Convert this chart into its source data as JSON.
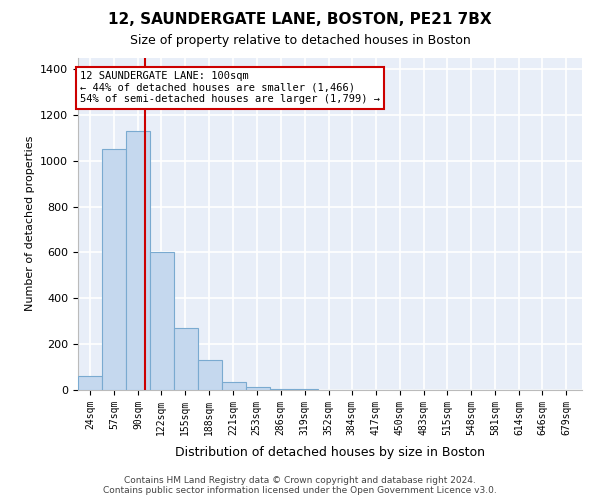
{
  "title1": "12, SAUNDERGATE LANE, BOSTON, PE21 7BX",
  "title2": "Size of property relative to detached houses in Boston",
  "xlabel": "Distribution of detached houses by size in Boston",
  "ylabel": "Number of detached properties",
  "bin_edges": [
    7.5,
    40.5,
    73.5,
    106.5,
    139.5,
    172.5,
    205.5,
    238.5,
    271.5,
    304.5,
    337.5,
    370.5,
    403.5,
    436.5,
    469.5,
    502.5,
    535.5,
    568.5,
    601.5,
    634.5,
    667.5,
    700.5
  ],
  "bar_values": [
    60,
    1050,
    1130,
    600,
    270,
    130,
    35,
    15,
    5,
    5,
    2,
    0,
    0,
    0,
    0,
    0,
    0,
    0,
    0,
    0,
    0
  ],
  "tick_labels": [
    "24sqm",
    "57sqm",
    "90sqm",
    "122sqm",
    "155sqm",
    "188sqm",
    "221sqm",
    "253sqm",
    "286sqm",
    "319sqm",
    "352sqm",
    "384sqm",
    "417sqm",
    "450sqm",
    "483sqm",
    "515sqm",
    "548sqm",
    "581sqm",
    "614sqm",
    "646sqm",
    "679sqm"
  ],
  "tick_positions": [
    24,
    57,
    90,
    122,
    155,
    188,
    221,
    253,
    286,
    319,
    352,
    384,
    417,
    450,
    483,
    515,
    548,
    581,
    614,
    646,
    679
  ],
  "bar_facecolor": "#c5d8ee",
  "bar_edgecolor": "#7aaad0",
  "vline_x": 100,
  "vline_color": "#cc0000",
  "annotation_text": "12 SAUNDERGATE LANE: 100sqm\n← 44% of detached houses are smaller (1,466)\n54% of semi-detached houses are larger (1,799) →",
  "annotation_box_facecolor": "#ffffff",
  "annotation_box_edgecolor": "#cc0000",
  "ylim": [
    0,
    1450
  ],
  "yticks": [
    0,
    200,
    400,
    600,
    800,
    1000,
    1200,
    1400
  ],
  "xlim": [
    7.5,
    700.5
  ],
  "bg_color": "#e8eef8",
  "grid_color": "#ffffff",
  "footer": "Contains HM Land Registry data © Crown copyright and database right 2024.\nContains public sector information licensed under the Open Government Licence v3.0."
}
